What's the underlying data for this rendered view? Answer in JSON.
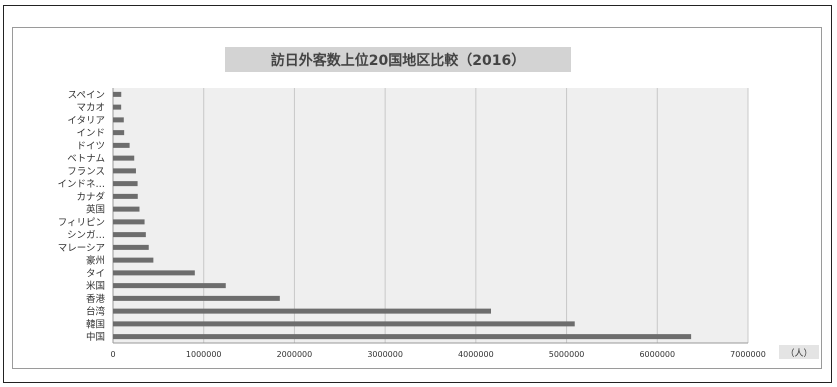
{
  "chart_data": {
    "type": "bar",
    "orientation": "horizontal",
    "title": "訪日外客数上位20国地区比較（2016）",
    "unit_label": "（人）",
    "xlim": [
      0,
      7000000
    ],
    "x_ticks": [
      0,
      1000000,
      2000000,
      3000000,
      4000000,
      5000000,
      6000000,
      7000000
    ],
    "x_tick_labels": [
      "0",
      "1000000",
      "2000000",
      "3000000",
      "4000000",
      "5000000",
      "6000000",
      "7000000"
    ],
    "grid": true,
    "colors": {
      "bar": "#6d6d6d",
      "plot_bg": "#efefef",
      "title_bg": "#d3d3d3",
      "grid": "#c8c8c8"
    },
    "categories": [
      "中国",
      "韓国",
      "台湾",
      "香港",
      "米国",
      "タイ",
      "豪州",
      "マレーシア",
      "シンガ…",
      "フィリピン",
      "英国",
      "カナダ",
      "インドネ…",
      "フランス",
      "ベトナム",
      "ドイツ",
      "インド",
      "イタリア",
      "マカオ",
      "スペイン"
    ],
    "values": [
      6373000,
      5090000,
      4167000,
      1839000,
      1243000,
      902000,
      445000,
      394000,
      362000,
      348000,
      292000,
      273000,
      271000,
      253000,
      234000,
      183000,
      123000,
      119000,
      90000,
      91000
    ]
  }
}
